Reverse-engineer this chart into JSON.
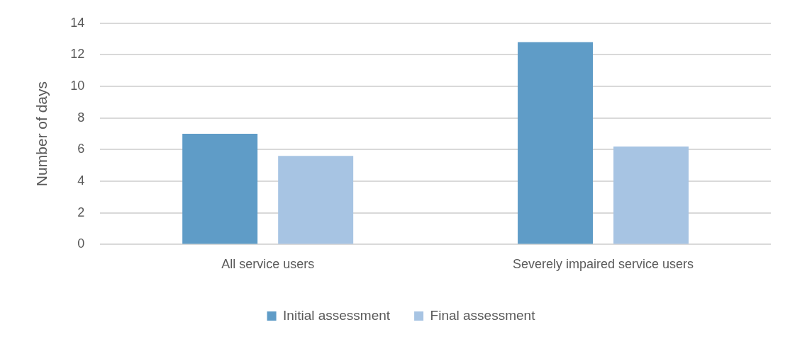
{
  "chart_data": {
    "type": "bar",
    "categories": [
      "All service users",
      "Severely impaired service users"
    ],
    "series": [
      {
        "name": "Initial assessment",
        "color": "#5f9cc7",
        "values": [
          7.0,
          12.8
        ]
      },
      {
        "name": "Final assessment",
        "color": "#a7c4e3",
        "values": [
          5.6,
          6.2
        ]
      }
    ],
    "ylabel": "Number of days",
    "ylim": [
      0,
      14
    ],
    "yticks": [
      0,
      2,
      4,
      6,
      8,
      10,
      12,
      14
    ],
    "grid": "y",
    "legend": "bottom"
  }
}
